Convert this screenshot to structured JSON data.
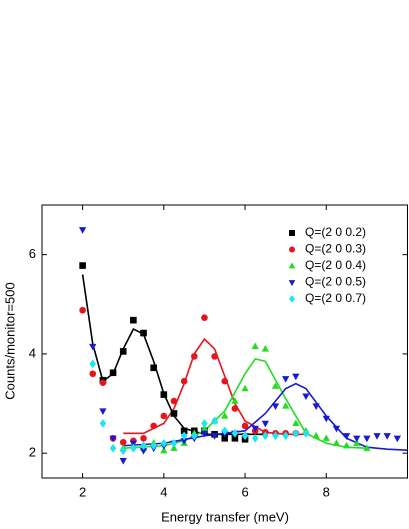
{
  "chart_data": {
    "type": "scatter",
    "xlabel": "Energy transfer (meV)",
    "ylabel": "Counts/monitor=500",
    "xlim": [
      1,
      10
    ],
    "ylim": [
      1.5,
      7
    ],
    "xticks": [
      2,
      4,
      6,
      8
    ],
    "yticks": [
      2,
      4,
      6
    ],
    "legend": "upper right",
    "series": [
      {
        "name": "Q=(2 0 0.2)",
        "color": "#000000",
        "marker": "square",
        "x": [
          2.0,
          2.5,
          2.75,
          3.0,
          3.25,
          3.5,
          3.75,
          4.0,
          4.25,
          4.5,
          4.75,
          5.0,
          5.25,
          5.5,
          5.75,
          6.0
        ],
        "values": [
          5.78,
          3.47,
          3.62,
          4.05,
          4.68,
          4.42,
          3.72,
          3.18,
          2.8,
          2.45,
          2.45,
          2.45,
          2.38,
          2.3,
          2.3,
          2.28
        ]
      },
      {
        "name": "Q=(2 0 0.3)",
        "color": "#e8141c",
        "marker": "circle",
        "x": [
          2.0,
          2.25,
          2.5,
          2.75,
          3.0,
          3.25,
          3.5,
          3.75,
          4.0,
          4.25,
          4.5,
          4.75,
          5.0,
          5.25,
          5.5,
          5.75,
          6.0,
          6.25,
          6.5,
          6.75,
          7.0,
          7.25
        ],
        "values": [
          4.88,
          3.6,
          3.42,
          2.3,
          2.22,
          2.25,
          2.3,
          2.55,
          2.75,
          3.05,
          3.45,
          3.95,
          4.73,
          3.95,
          3.45,
          2.9,
          2.55,
          2.45,
          2.42,
          2.4,
          2.4,
          2.4
        ]
      },
      {
        "name": "Q=(2 0 0.4)",
        "color": "#22dd22",
        "marker": "triangle-up",
        "x": [
          3.0,
          3.25,
          3.5,
          3.75,
          4.0,
          4.25,
          4.5,
          4.75,
          5.0,
          5.25,
          5.5,
          5.75,
          6.0,
          6.25,
          6.5,
          6.75,
          7.0,
          7.25,
          7.5,
          7.75,
          8.0,
          8.25,
          8.5,
          8.75,
          9.0
        ],
        "values": [
          2.1,
          2.15,
          2.1,
          2.2,
          2.05,
          2.1,
          2.2,
          2.4,
          2.5,
          2.65,
          2.75,
          3.05,
          3.3,
          4.15,
          4.1,
          3.35,
          2.95,
          2.6,
          2.45,
          2.35,
          2.3,
          2.2,
          2.15,
          2.2,
          2.1
        ]
      },
      {
        "name": "Q=(2 0 0.5)",
        "color": "#1a1ad6",
        "marker": "triangle-down",
        "x": [
          2.0,
          2.25,
          2.5,
          2.75,
          3.0,
          3.25,
          3.5,
          3.75,
          4.0,
          4.25,
          4.5,
          4.75,
          5.0,
          5.25,
          5.5,
          5.75,
          6.0,
          6.25,
          6.5,
          6.75,
          7.0,
          7.25,
          7.5,
          7.75,
          8.0,
          8.25,
          8.5,
          8.75,
          9.0,
          9.25,
          9.5,
          9.75
        ],
        "values": [
          6.5,
          4.15,
          2.85,
          2.3,
          1.85,
          2.2,
          2.05,
          2.1,
          2.15,
          2.2,
          2.25,
          2.3,
          2.4,
          2.35,
          2.4,
          2.4,
          2.35,
          2.5,
          2.6,
          2.95,
          3.5,
          3.55,
          3.15,
          2.95,
          2.7,
          2.5,
          2.35,
          2.3,
          2.3,
          2.35,
          2.35,
          2.3
        ]
      },
      {
        "name": "Q=(2 0 0.7)",
        "color": "#19e6f0",
        "marker": "diamond",
        "x": [
          2.25,
          2.5,
          2.75,
          3.0,
          3.25,
          3.5,
          3.75,
          4.0,
          4.25,
          4.5,
          4.75,
          5.0,
          5.25,
          5.5,
          5.75,
          6.0,
          6.25,
          6.5,
          6.75,
          7.0,
          7.25,
          7.5
        ],
        "values": [
          3.8,
          2.6,
          2.1,
          2.05,
          2.1,
          2.15,
          2.15,
          2.2,
          2.2,
          2.35,
          2.35,
          2.6,
          2.65,
          2.45,
          2.4,
          2.35,
          2.3,
          2.35,
          2.35,
          2.35,
          2.4,
          2.4
        ]
      }
    ],
    "fits": [
      {
        "color": "#000000",
        "x": [
          2.0,
          2.25,
          2.5,
          2.75,
          3.0,
          3.25,
          3.5,
          3.75,
          4.0,
          4.25,
          4.5,
          5.0,
          5.5,
          6.0,
          6.5
        ],
        "values": [
          5.6,
          4.2,
          3.45,
          3.6,
          4.1,
          4.5,
          4.4,
          3.85,
          3.2,
          2.75,
          2.5,
          2.38,
          2.38,
          2.38,
          2.38
        ]
      },
      {
        "color": "#e8141c",
        "x": [
          3.0,
          3.5,
          4.0,
          4.25,
          4.5,
          4.75,
          5.0,
          5.25,
          5.5,
          5.75,
          6.0,
          6.5,
          7.0,
          7.5
        ],
        "values": [
          2.4,
          2.4,
          2.6,
          2.9,
          3.4,
          4.0,
          4.3,
          4.1,
          3.55,
          3.0,
          2.65,
          2.42,
          2.38,
          2.38
        ]
      },
      {
        "color": "#22dd22",
        "x": [
          3.0,
          4.0,
          4.5,
          5.0,
          5.5,
          6.0,
          6.25,
          6.5,
          7.0,
          7.5,
          8.0,
          8.5,
          9.0
        ],
        "values": [
          2.1,
          2.15,
          2.25,
          2.45,
          2.85,
          3.6,
          3.9,
          3.85,
          3.1,
          2.4,
          2.2,
          2.12,
          2.1
        ]
      },
      {
        "color": "#1a1ad6",
        "x": [
          3.0,
          4.0,
          5.0,
          6.0,
          6.5,
          7.0,
          7.25,
          7.5,
          8.0,
          8.5,
          9.0,
          9.5,
          10.0
        ],
        "values": [
          2.15,
          2.2,
          2.35,
          2.45,
          2.8,
          3.3,
          3.4,
          3.3,
          2.75,
          2.3,
          2.12,
          2.08,
          2.06
        ]
      }
    ]
  }
}
